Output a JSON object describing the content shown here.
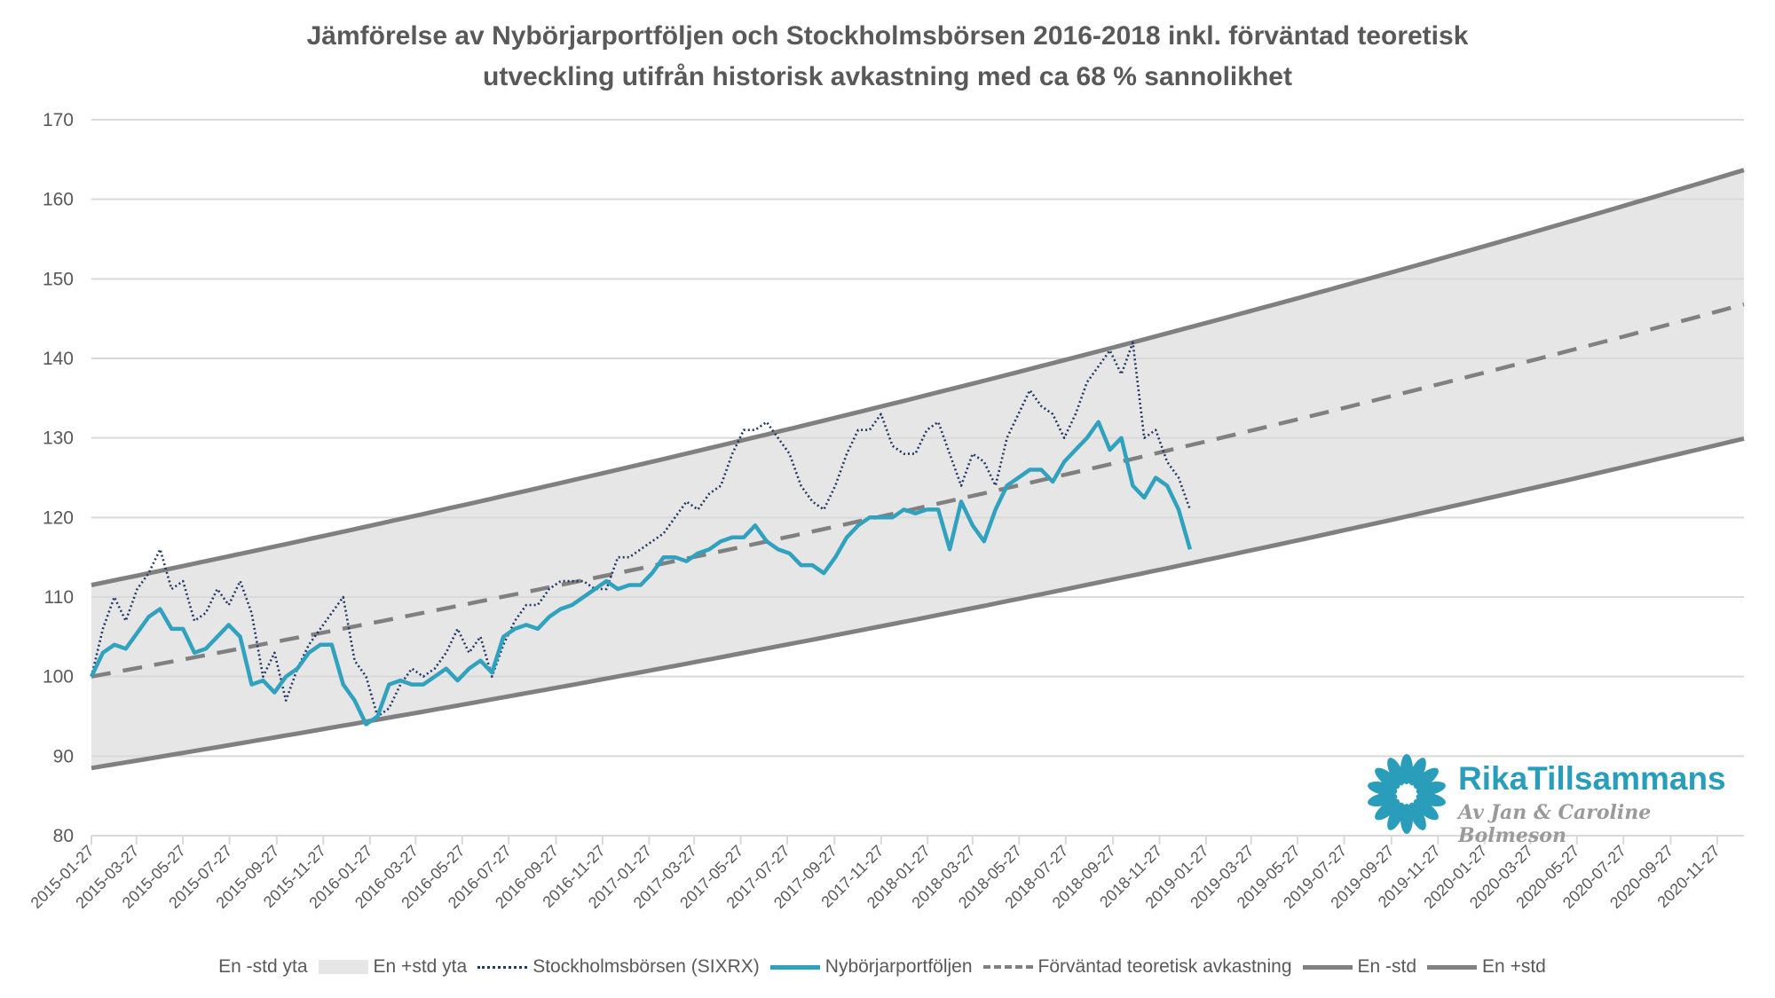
{
  "chart_data": {
    "type": "line",
    "title": [
      "Jämförelse av Nybörjarportföljen och Stockholmsbörsen 2016-2018 inkl. förväntad teoretisk",
      "utveckling utifrån historisk avkastning med ca 68 % sannolikhet"
    ],
    "xlabel": "",
    "ylabel": "",
    "ylim": [
      80,
      170
    ],
    "yticks": [
      "80",
      "90",
      "100",
      "110",
      "120",
      "130",
      "140",
      "150",
      "160",
      "170"
    ],
    "x_start_date": "2015-01-27",
    "x_end_date": "2021-01-01",
    "xticks": [
      "2015-01-27",
      "2015-03-27",
      "2015-05-27",
      "2015-07-27",
      "2015-09-27",
      "2015-11-27",
      "2016-01-27",
      "2016-03-27",
      "2016-05-27",
      "2016-07-27",
      "2016-09-27",
      "2016-11-27",
      "2017-01-27",
      "2017-03-27",
      "2017-05-27",
      "2017-07-27",
      "2017-09-27",
      "2017-11-27",
      "2018-01-27",
      "2018-03-27",
      "2018-05-27",
      "2018-07-27",
      "2018-09-27",
      "2018-11-27",
      "2019-01-27",
      "2019-03-27",
      "2019-05-27",
      "2019-07-27",
      "2019-09-27",
      "2019-11-27",
      "2020-01-27",
      "2020-03-27",
      "2020-05-27",
      "2020-07-27",
      "2020-09-27",
      "2020-11-27"
    ],
    "grid": true,
    "legend_position": "bottom",
    "sample_step_days": 15,
    "bands": {
      "expected_start": 100,
      "expected_end": 146.8,
      "plus_std_factor": 1.115,
      "minus_std_factor": 0.885
    },
    "series": [
      {
        "name": "En -std yta",
        "style": "area-white"
      },
      {
        "name": "En +std yta",
        "style": "area-gray",
        "color": "#e6e6e6"
      },
      {
        "name": "Stockholmsbörsen (SIXRX)",
        "style": "dotted",
        "color": "#1f3864",
        "values": [
          100,
          106,
          110,
          107,
          111,
          113,
          116,
          111,
          112,
          107,
          108,
          111,
          109,
          112,
          108,
          100,
          103,
          97,
          101,
          104,
          106,
          108,
          110,
          102,
          100,
          95,
          96,
          99,
          101,
          100,
          101,
          103,
          106,
          103,
          105,
          100,
          104,
          107,
          109,
          109,
          111,
          112,
          112,
          112,
          111,
          111,
          115,
          115,
          116,
          117,
          118,
          120,
          122,
          121,
          123,
          124,
          128,
          131,
          131,
          132,
          130,
          128,
          124,
          122,
          121,
          124,
          128,
          131,
          131,
          133,
          129,
          128,
          128,
          131,
          132,
          128,
          124,
          128,
          127,
          124,
          130,
          133,
          136,
          134,
          133,
          130,
          133,
          137,
          139,
          141,
          138,
          142,
          130,
          131,
          127,
          125,
          121
        ]
      },
      {
        "name": "Nybörjarportföljen",
        "style": "solid",
        "color": "#31a2be",
        "values": [
          100,
          103,
          104,
          103.5,
          105.5,
          107.5,
          108.5,
          106,
          106,
          103,
          103.5,
          105,
          106.5,
          105,
          99,
          99.5,
          98,
          100,
          101,
          103,
          104,
          104,
          99,
          97,
          94,
          95,
          99,
          99.5,
          99,
          99,
          100,
          101,
          99.5,
          101,
          102,
          100.5,
          105,
          106,
          106.5,
          106,
          107.5,
          108.5,
          109,
          110,
          111,
          112,
          111,
          111.5,
          111.5,
          113,
          115,
          115,
          114.5,
          115.5,
          116,
          117,
          117.5,
          117.5,
          119,
          117,
          116,
          115.5,
          114,
          114,
          113,
          115,
          117.5,
          119,
          120,
          120,
          120,
          121,
          120.5,
          121,
          121,
          116,
          122,
          119,
          117,
          121,
          124,
          125,
          126,
          126,
          124.5,
          127,
          128.5,
          130,
          132,
          128.5,
          130,
          124,
          122.5,
          125,
          124,
          121,
          116
        ]
      },
      {
        "name": "Förväntad teoretisk avkastning",
        "style": "dashed",
        "color": "#808080"
      },
      {
        "name": "En -std",
        "style": "solid",
        "color": "#808080"
      },
      {
        "name": "En +std",
        "style": "solid",
        "color": "#808080"
      }
    ]
  },
  "logo": {
    "brand": "RikaTillsammans",
    "tagline": "Av Jan & Caroline Bolmeson",
    "color": "#2a9dbb"
  }
}
